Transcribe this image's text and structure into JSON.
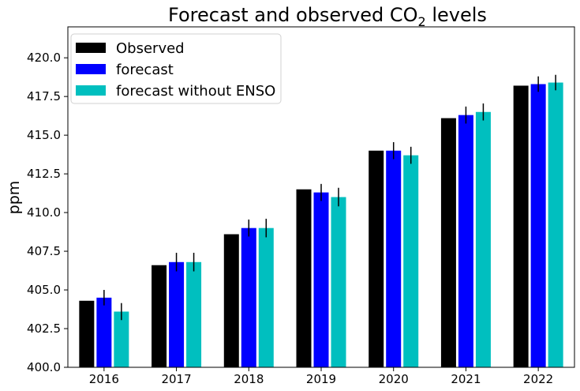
{
  "chart_data": {
    "type": "bar",
    "title": {
      "main": "Forecast and observed CO",
      "subscript": "2",
      "suffix": " levels"
    },
    "xlabel": "",
    "ylabel": "ppm",
    "ylim": [
      400.0,
      422.0
    ],
    "yticks": [
      "400.0",
      "402.5",
      "405.0",
      "407.5",
      "410.0",
      "412.5",
      "415.0",
      "417.5",
      "420.0"
    ],
    "ytick_values": [
      400.0,
      402.5,
      405.0,
      407.5,
      410.0,
      412.5,
      415.0,
      417.5,
      420.0
    ],
    "categories": [
      "2016",
      "2017",
      "2018",
      "2019",
      "2020",
      "2021",
      "2022"
    ],
    "grid": false,
    "legend_placement": "top-left",
    "series": [
      {
        "name": "Observed",
        "color": "#000000",
        "values": [
          404.3,
          406.6,
          408.6,
          411.5,
          414.0,
          416.1,
          418.2
        ],
        "errors": null
      },
      {
        "name": "forecast",
        "color": "#0000ff",
        "values": [
          404.5,
          406.8,
          409.0,
          411.3,
          414.0,
          416.3,
          418.3
        ],
        "errors": [
          0.5,
          0.6,
          0.55,
          0.55,
          0.55,
          0.55,
          0.5
        ]
      },
      {
        "name": "forecast without ENSO",
        "color": "#00bfbf",
        "values": [
          403.6,
          406.8,
          409.0,
          411.0,
          413.7,
          416.5,
          418.4
        ],
        "errors": [
          0.55,
          0.6,
          0.6,
          0.6,
          0.55,
          0.55,
          0.5
        ]
      }
    ]
  }
}
